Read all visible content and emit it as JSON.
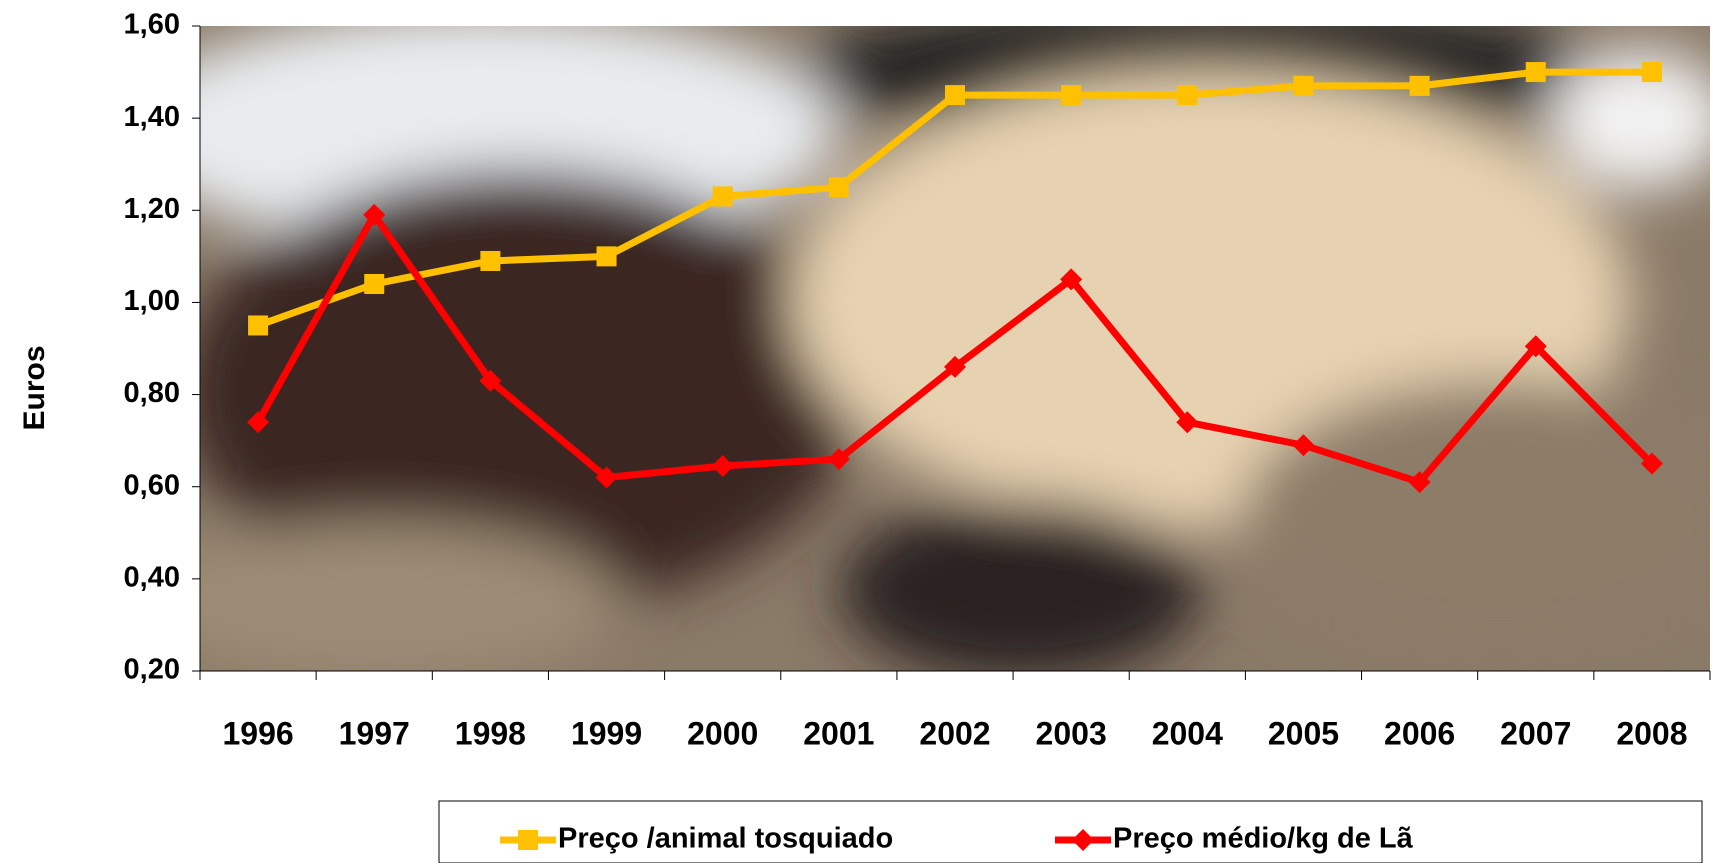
{
  "chart_data": {
    "type": "line",
    "y_label": "Euros",
    "categories": [
      "1996",
      "1997",
      "1998",
      "1999",
      "2000",
      "2001",
      "2002",
      "2003",
      "2004",
      "2005",
      "2006",
      "2007",
      "2008"
    ],
    "series": [
      {
        "name": "Preço /animal tosquiado",
        "color": "#ffc000",
        "marker": "square",
        "values": [
          0.95,
          1.04,
          1.09,
          1.1,
          1.23,
          1.25,
          1.45,
          1.45,
          1.45,
          1.47,
          1.47,
          1.5,
          1.5
        ]
      },
      {
        "name": "Preço médio/kg de Lã",
        "color": "#ff0000",
        "marker": "diamond",
        "values": [
          0.74,
          1.19,
          0.83,
          0.62,
          0.645,
          0.66,
          0.86,
          1.05,
          0.74,
          0.69,
          0.61,
          0.905,
          0.65
        ]
      }
    ],
    "ylim": [
      0.2,
      1.6
    ],
    "yticks": [
      {
        "value": 0.2,
        "label": "0,20"
      },
      {
        "value": 0.4,
        "label": "0,40"
      },
      {
        "value": 0.6,
        "label": "0,60"
      },
      {
        "value": 0.8,
        "label": "0,80"
      },
      {
        "value": 1.0,
        "label": "1,00"
      },
      {
        "value": 1.2,
        "label": "1,20"
      },
      {
        "value": 1.4,
        "label": "1,40"
      },
      {
        "value": 1.6,
        "label": "1,60"
      }
    ],
    "legend": "bottom"
  }
}
